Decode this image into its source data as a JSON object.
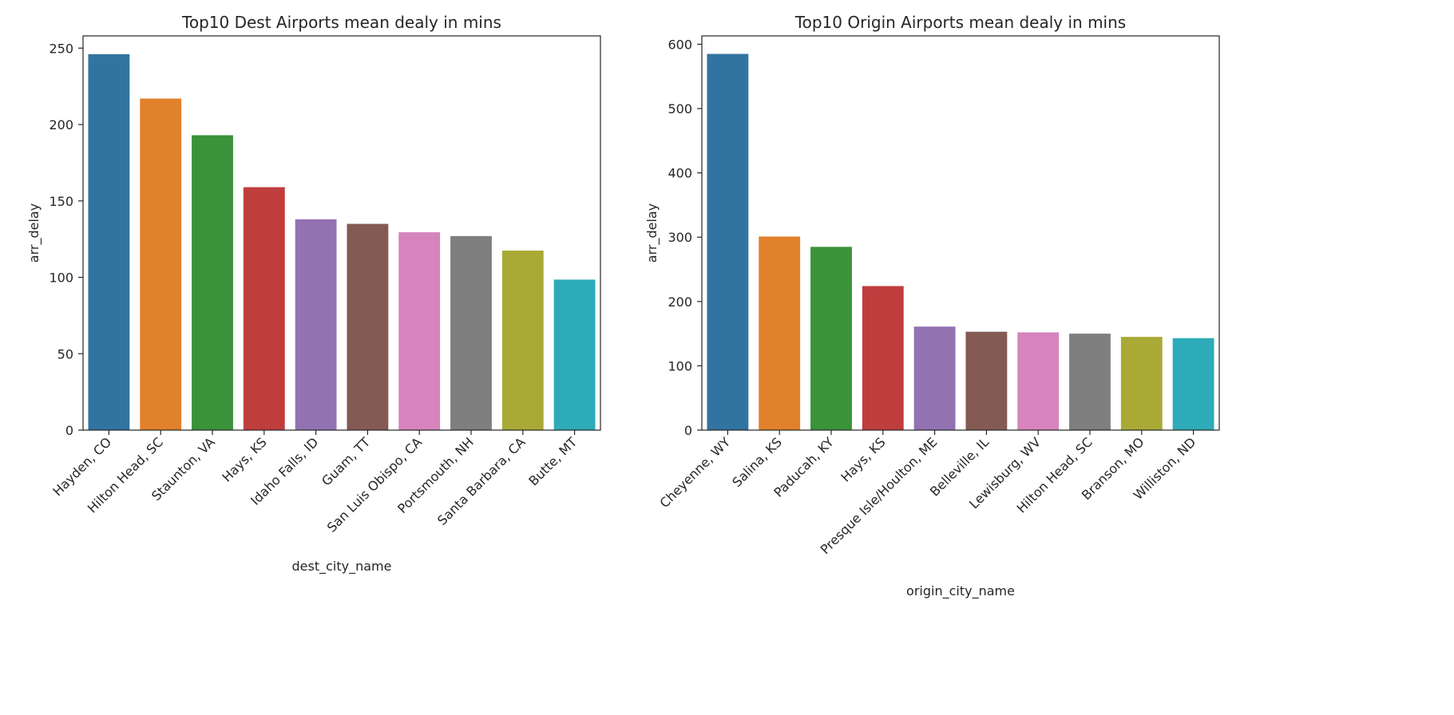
{
  "chart_data": [
    {
      "type": "bar",
      "title": "Top10 Dest Airports mean dealy in mins",
      "xlabel": "dest_city_name",
      "ylabel": "arr_delay",
      "categories": [
        "Hayden, CO",
        "Hilton Head, SC",
        "Staunton, VA",
        "Hays, KS",
        "Idaho Falls, ID",
        "Guam, TT",
        "San Luis Obispo, CA",
        "Portsmouth, NH",
        "Santa Barbara, CA",
        "Butte, MT"
      ],
      "values": [
        246,
        217,
        193,
        159,
        138,
        135,
        129.5,
        127,
        117.5,
        98.5
      ],
      "colors": [
        "#3274a1",
        "#e1812c",
        "#3a923a",
        "#c03d3e",
        "#9372b2",
        "#845b53",
        "#d684bd",
        "#7f7f7f",
        "#a9aa35",
        "#2eabb8"
      ],
      "ylim": [
        0,
        258
      ],
      "yticks": [
        0,
        50,
        100,
        150,
        200,
        250
      ],
      "grid": false
    },
    {
      "type": "bar",
      "title": "Top10 Origin Airports mean dealy in mins",
      "xlabel": "origin_city_name",
      "ylabel": "arr_delay",
      "categories": [
        "Cheyenne, WY",
        "Salina, KS",
        "Paducah, KY",
        "Hays, KS",
        "Presque Isle/Houlton, ME",
        "Belleville, IL",
        "Lewisburg, WV",
        "Hilton Head, SC",
        "Branson, MO",
        "Williston, ND"
      ],
      "values": [
        585,
        301,
        285,
        224,
        161,
        153,
        152,
        150,
        145,
        143
      ],
      "colors": [
        "#3274a1",
        "#e1812c",
        "#3a923a",
        "#c03d3e",
        "#9372b2",
        "#845b53",
        "#d684bd",
        "#7f7f7f",
        "#a9aa35",
        "#2eabb8"
      ],
      "ylim": [
        0,
        613
      ],
      "yticks": [
        0,
        100,
        200,
        300,
        400,
        500,
        600
      ],
      "grid": false
    }
  ]
}
